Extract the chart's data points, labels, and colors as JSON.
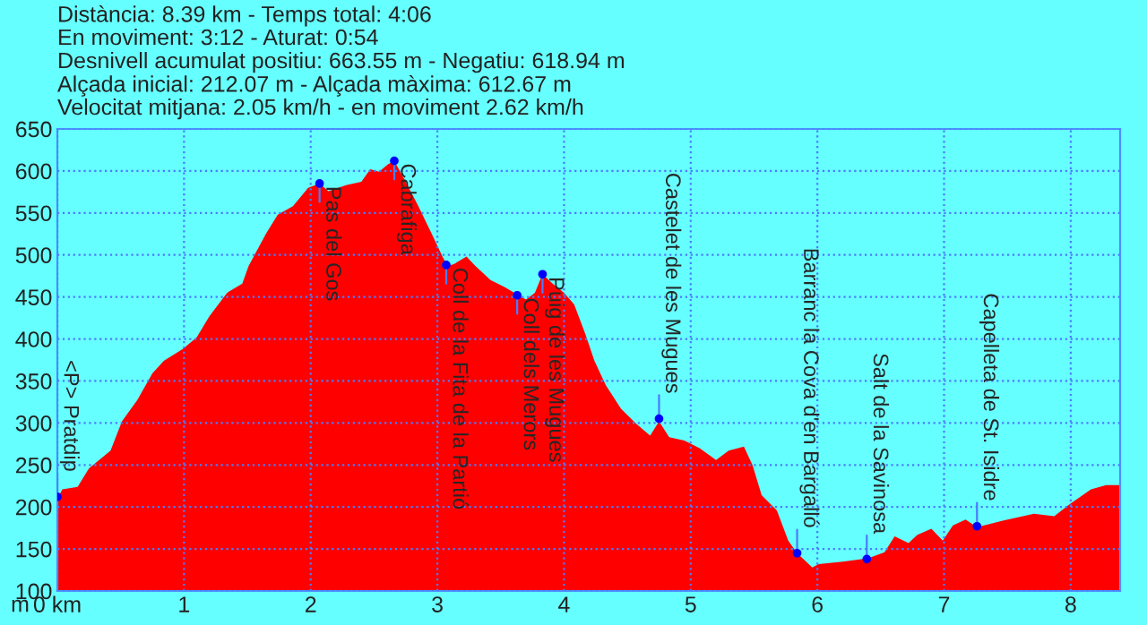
{
  "chart_data": {
    "type": "area",
    "title": "Distància: 8.39 km - Temps total: 4:06",
    "subtitle": "En moviment: 3:12 - Aturat: 0:54\nDesnivell acumulat positiu: 663.55 m - Negatiu: 618.94 m\nAlçada inicial: 212.07 m - Alçada màxima: 612.67 m\nVelocitat mitjana: 2.05 km/h - en moviment 2.62 km/h",
    "ylabel": "m",
    "series": [
      {
        "color": "#ff0000",
        "x": [
          0,
          0.04,
          0.16,
          0.25,
          0.33,
          0.42,
          0.51,
          0.63,
          0.75,
          0.84,
          0.99,
          1.1,
          1.2,
          1.34,
          1.46,
          1.51,
          1.65,
          1.74,
          1.86,
          1.98,
          2.07,
          2.14,
          2.28,
          2.4,
          2.47,
          2.54,
          2.61,
          2.66,
          2.75,
          2.85,
          2.94,
          3.04,
          3.08,
          3.13,
          3.23,
          3.3,
          3.42,
          3.53,
          3.64,
          3.7,
          3.77,
          3.83,
          3.91,
          4.0,
          4.08,
          4.17,
          4.24,
          4.33,
          4.45,
          4.57,
          4.68,
          4.75,
          4.83,
          4.95,
          5.07,
          5.2,
          5.3,
          5.42,
          5.49,
          5.56,
          5.68,
          5.77,
          5.84,
          5.96,
          6.01,
          6.2,
          6.4,
          6.53,
          6.61,
          6.72,
          6.79,
          6.9,
          6.99,
          7.07,
          7.17,
          7.26,
          7.47,
          7.71,
          7.87,
          7.99,
          8.16,
          8.28,
          8.39
        ],
        "values": [
          210,
          221,
          224,
          246,
          256,
          267,
          302,
          327,
          359,
          374,
          388,
          402,
          427,
          455,
          466,
          487,
          526,
          548,
          558,
          580,
          585,
          576,
          583,
          587,
          602,
          599,
          608,
          612,
          587,
          558,
          530,
          498,
          487,
          489,
          498,
          487,
          470,
          462,
          452,
          447,
          455,
          477,
          466,
          455,
          441,
          405,
          374,
          345,
          317,
          299,
          285,
          302,
          283,
          279,
          270,
          256,
          267,
          272,
          249,
          214,
          196,
          160,
          145,
          128,
          132,
          135,
          139,
          146,
          165,
          157,
          167,
          174,
          160,
          178,
          185,
          176,
          184,
          192,
          189,
          203,
          221,
          226,
          226
        ]
      }
    ],
    "annotations": [
      {
        "text": "<P> Pratdip",
        "x": 0,
        "y": 212
      },
      {
        "text": "Pas del Gos",
        "x": 2.07,
        "y": 585
      },
      {
        "text": "Cabrafiga",
        "x": 2.66,
        "y": 612
      },
      {
        "text": "Coll de la Fita de la Partió",
        "x": 3.07,
        "y": 488
      },
      {
        "text": "Coll dels Merors",
        "x": 3.63,
        "y": 452
      },
      {
        "text": "Puig de les Mugues",
        "x": 3.83,
        "y": 477
      },
      {
        "text": "Castelet de les Mugues",
        "x": 4.75,
        "y": 305
      },
      {
        "text": "Barranc la Cova d'en Bargalló",
        "x": 5.84,
        "y": 145
      },
      {
        "text": "Salt de la Savinosa",
        "x": 6.39,
        "y": 138
      },
      {
        "text": "Capelleta de St. Isidre",
        "x": 7.26,
        "y": 177
      }
    ],
    "xlim": [
      0,
      8.39
    ],
    "xticks": [
      {
        "value": 0,
        "label": "0 km"
      },
      1,
      2,
      3,
      4,
      5,
      6,
      7,
      8
    ],
    "ylim": [
      100,
      650
    ],
    "yticks": [
      100,
      150,
      200,
      250,
      300,
      350,
      400,
      450,
      500,
      550,
      600,
      650
    ],
    "grid": true,
    "legend": false
  }
}
